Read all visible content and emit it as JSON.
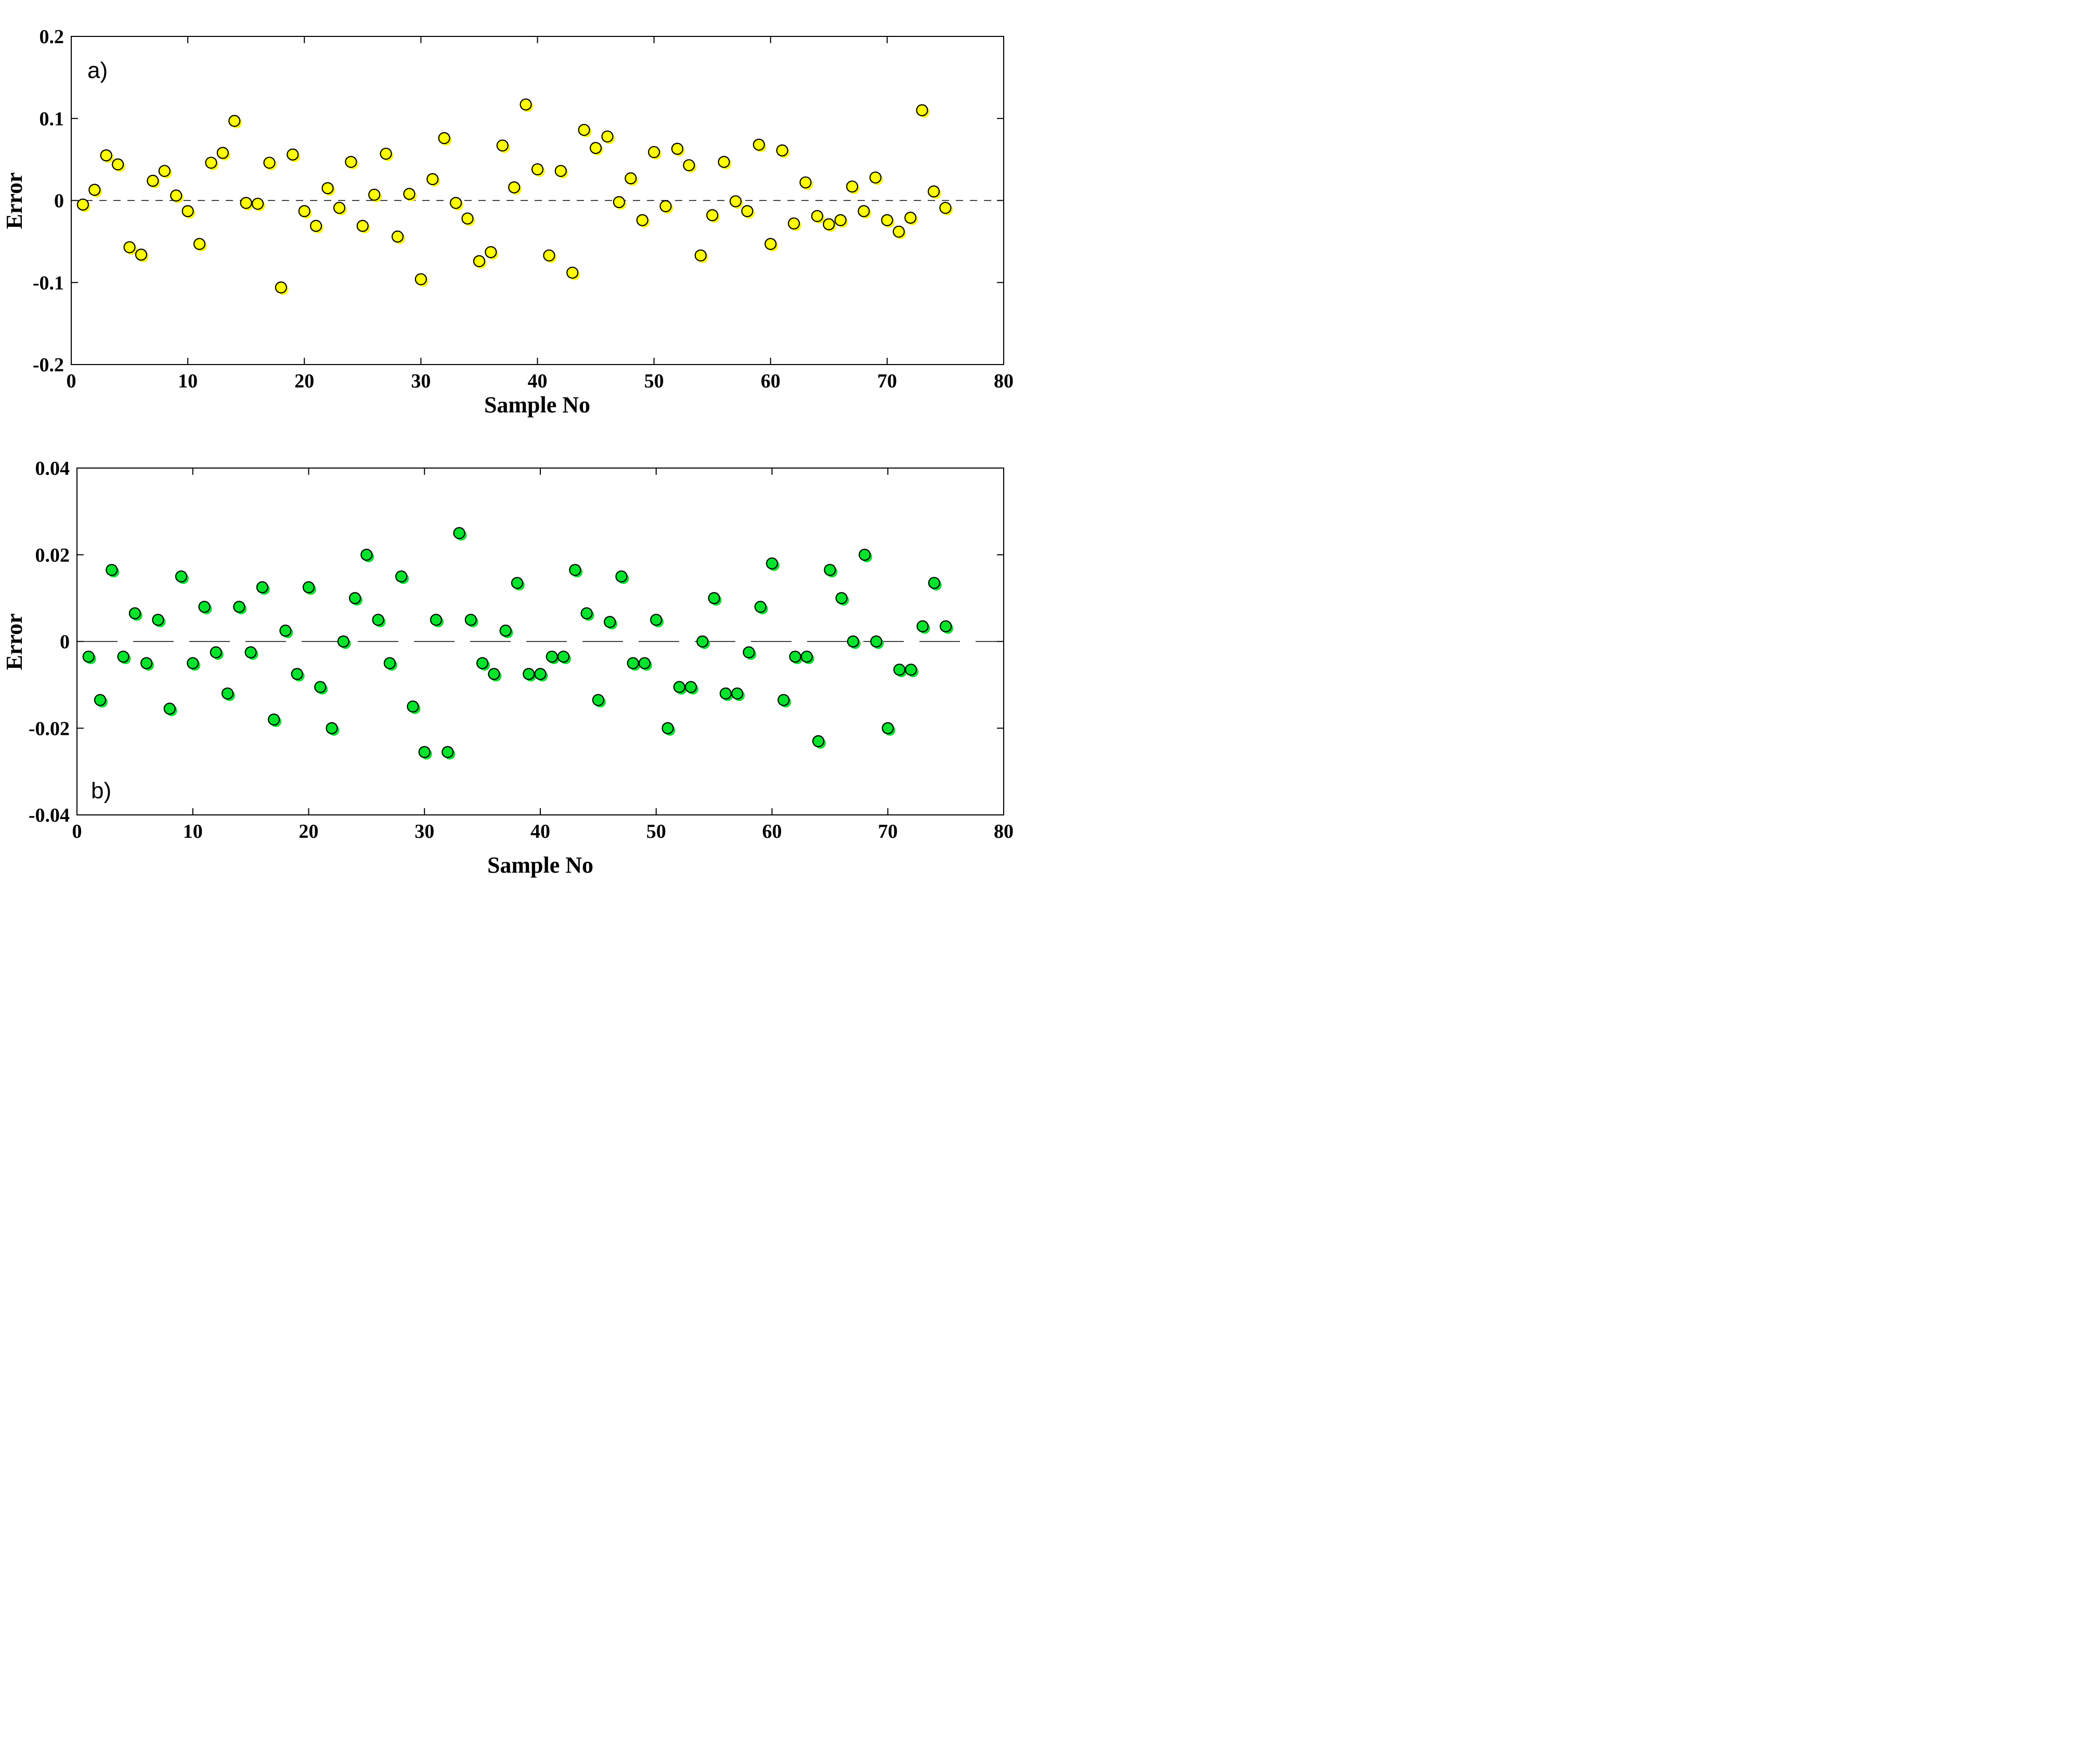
{
  "figure": {
    "background": "#ffffff",
    "axis_color": "#000000",
    "zero_line_color": "#000000"
  },
  "chart_data": [
    {
      "type": "scatter",
      "panel_label": "a)",
      "xlabel": "Sample No",
      "ylabel": "Error",
      "xlim": [
        0,
        80
      ],
      "ylim": [
        -0.2,
        0.2
      ],
      "xticks": [
        0,
        10,
        20,
        30,
        40,
        50,
        60,
        70,
        80
      ],
      "xtick_labels": [
        "0",
        "10",
        "20",
        "30",
        "40",
        "50",
        "60",
        "70",
        "80"
      ],
      "yticks": [
        -0.2,
        -0.1,
        0,
        0.1,
        0.2
      ],
      "ytick_labels": [
        "-0.2",
        "-0.1",
        "0",
        "0.1",
        "0.2"
      ],
      "grid": false,
      "legend": null,
      "zero_line_style": "short-dash",
      "marker_color": "#ffff00",
      "marker_edge_color": "#000000",
      "x": [
        1,
        2,
        3,
        4,
        5,
        6,
        7,
        8,
        9,
        10,
        11,
        12,
        13,
        14,
        15,
        16,
        17,
        18,
        19,
        20,
        21,
        22,
        23,
        24,
        25,
        26,
        27,
        28,
        29,
        30,
        31,
        32,
        33,
        34,
        35,
        36,
        37,
        38,
        39,
        40,
        41,
        42,
        43,
        44,
        45,
        46,
        47,
        48,
        49,
        50,
        51,
        52,
        53,
        54,
        55,
        56,
        57,
        58,
        59,
        60,
        61,
        62,
        63,
        64,
        65,
        66,
        67,
        68,
        69,
        70,
        71,
        72,
        73,
        74,
        75
      ],
      "y": [
        -0.005,
        0.013,
        0.055,
        0.044,
        -0.057,
        -0.066,
        0.024,
        0.036,
        0.006,
        -0.013,
        -0.053,
        0.046,
        0.058,
        0.097,
        -0.003,
        -0.004,
        0.046,
        -0.106,
        0.056,
        -0.013,
        -0.031,
        0.015,
        -0.009,
        0.047,
        -0.031,
        0.007,
        0.057,
        -0.044,
        0.008,
        -0.096,
        0.026,
        0.076,
        -0.003,
        -0.022,
        -0.074,
        -0.063,
        0.067,
        0.016,
        0.117,
        0.038,
        -0.067,
        0.036,
        -0.088,
        0.086,
        0.064,
        0.078,
        -0.002,
        0.027,
        -0.024,
        0.059,
        -0.007,
        0.063,
        0.043,
        -0.067,
        -0.018,
        0.047,
        -0.001,
        -0.013,
        0.068,
        -0.053,
        0.061,
        -0.028,
        0.022,
        -0.019,
        -0.029,
        -0.024,
        0.017,
        -0.013,
        0.028,
        -0.024,
        -0.038,
        -0.021,
        0.11,
        0.011,
        -0.009
      ]
    },
    {
      "type": "scatter",
      "panel_label": "b)",
      "xlabel": "Sample No",
      "ylabel": "Error",
      "xlim": [
        0,
        80
      ],
      "ylim": [
        -0.04,
        0.04
      ],
      "xticks": [
        0,
        10,
        20,
        30,
        40,
        50,
        60,
        70,
        80
      ],
      "xtick_labels": [
        "0",
        "10",
        "20",
        "30",
        "40",
        "50",
        "60",
        "70",
        "80"
      ],
      "yticks": [
        -0.04,
        -0.02,
        0,
        0.02,
        0.04
      ],
      "ytick_labels": [
        "-0.04",
        "-0.02",
        "0",
        "0.02",
        "0.04"
      ],
      "grid": false,
      "legend": null,
      "zero_line_style": "long-dash",
      "marker_color": "#00e42c",
      "marker_edge_color": "#000000",
      "x": [
        1,
        2,
        3,
        4,
        5,
        6,
        7,
        8,
        9,
        10,
        11,
        12,
        13,
        14,
        15,
        16,
        17,
        18,
        19,
        20,
        21,
        22,
        23,
        24,
        25,
        26,
        27,
        28,
        29,
        30,
        31,
        32,
        33,
        34,
        35,
        36,
        37,
        38,
        39,
        40,
        41,
        42,
        43,
        44,
        45,
        46,
        47,
        48,
        49,
        50,
        51,
        52,
        53,
        54,
        55,
        56,
        57,
        58,
        59,
        60,
        61,
        62,
        63,
        64,
        65,
        66,
        67,
        68,
        69,
        70,
        71,
        72,
        73,
        74,
        75
      ],
      "y": [
        -0.0035,
        -0.0135,
        0.0165,
        -0.0035,
        0.0065,
        -0.005,
        0.005,
        -0.0155,
        0.015,
        -0.005,
        0.008,
        -0.0025,
        -0.012,
        0.008,
        -0.0025,
        0.0125,
        -0.018,
        0.0025,
        -0.0075,
        0.0125,
        -0.0105,
        -0.02,
        0.0,
        0.01,
        0.02,
        0.005,
        -0.005,
        0.015,
        -0.015,
        -0.0255,
        0.005,
        -0.0255,
        0.025,
        0.005,
        -0.005,
        -0.0075,
        0.0025,
        0.0135,
        -0.0075,
        -0.0075,
        -0.0035,
        -0.0035,
        0.0165,
        0.0065,
        -0.0135,
        0.0045,
        0.015,
        -0.005,
        -0.005,
        0.005,
        -0.02,
        -0.0105,
        -0.0105,
        0.0,
        0.01,
        -0.012,
        -0.012,
        -0.0025,
        0.008,
        0.018,
        -0.0135,
        -0.0035,
        -0.0035,
        -0.023,
        0.0165,
        0.01,
        0.0,
        0.02,
        0.0,
        -0.02,
        -0.0065,
        -0.0065,
        0.0035,
        0.0135,
        0.0035
      ]
    }
  ]
}
